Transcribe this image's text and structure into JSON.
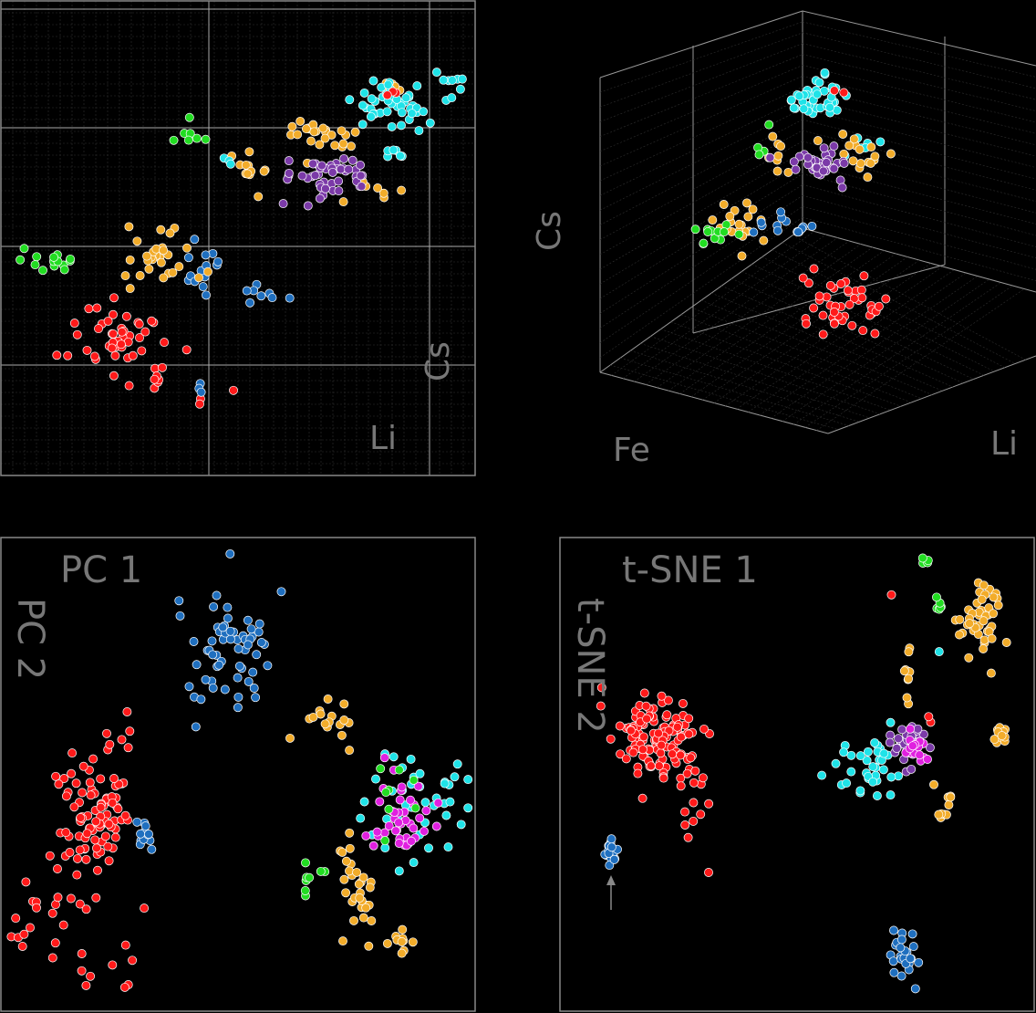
{
  "colors": {
    "red": "#ff1a1a",
    "blue": "#1f6fbf",
    "cyan": "#1fe3e8",
    "orange": "#f2ac2a",
    "green": "#22dd22",
    "purple": "#7b3aa8",
    "magenta": "#e020e0",
    "frame": "#888888",
    "grid": "#2e2e2e",
    "axis_text": "#777777"
  },
  "chart_data": [
    {
      "type": "scatter",
      "panel": "top-left",
      "xlabel": "Li",
      "ylabel": "Cs",
      "grid": true,
      "clusters": [
        {
          "color": "red",
          "x": 0.25,
          "y": 0.29,
          "n": 45,
          "sx": 0.05,
          "sy": 0.04
        },
        {
          "color": "red",
          "x": 0.33,
          "y": 0.21,
          "n": 7,
          "sx": 0.02,
          "sy": 0.02
        },
        {
          "color": "red",
          "x": 0.42,
          "y": 0.16,
          "n": 2,
          "sx": 0.005,
          "sy": 0.005
        },
        {
          "color": "red",
          "x": 0.49,
          "y": 0.18,
          "n": 1,
          "sx": 0.002,
          "sy": 0.002
        },
        {
          "color": "blue",
          "x": 0.42,
          "y": 0.43,
          "n": 14,
          "sx": 0.015,
          "sy": 0.04
        },
        {
          "color": "blue",
          "x": 0.55,
          "y": 0.38,
          "n": 8,
          "sx": 0.03,
          "sy": 0.01
        },
        {
          "color": "blue",
          "x": 0.42,
          "y": 0.19,
          "n": 3,
          "sx": 0.005,
          "sy": 0.01
        },
        {
          "color": "green",
          "x": 0.1,
          "y": 0.46,
          "n": 14,
          "sx": 0.04,
          "sy": 0.015
        },
        {
          "color": "green",
          "x": 0.4,
          "y": 0.72,
          "n": 6,
          "sx": 0.02,
          "sy": 0.01
        },
        {
          "color": "green",
          "x": 0.4,
          "y": 0.76,
          "n": 1,
          "sx": 0.002,
          "sy": 0.002
        },
        {
          "color": "orange",
          "x": 0.34,
          "y": 0.46,
          "n": 30,
          "sx": 0.035,
          "sy": 0.035
        },
        {
          "color": "orange",
          "x": 0.53,
          "y": 0.64,
          "n": 12,
          "sx": 0.02,
          "sy": 0.025
        },
        {
          "color": "orange",
          "x": 0.67,
          "y": 0.72,
          "n": 25,
          "sx": 0.04,
          "sy": 0.02
        },
        {
          "color": "orange",
          "x": 0.8,
          "y": 0.6,
          "n": 7,
          "sx": 0.04,
          "sy": 0.015
        },
        {
          "color": "orange",
          "x": 0.82,
          "y": 0.8,
          "n": 6,
          "sx": 0.02,
          "sy": 0.02
        },
        {
          "color": "purple",
          "x": 0.69,
          "y": 0.63,
          "n": 45,
          "sx": 0.05,
          "sy": 0.02
        },
        {
          "color": "cyan",
          "x": 0.83,
          "y": 0.78,
          "n": 45,
          "sx": 0.04,
          "sy": 0.025
        },
        {
          "color": "cyan",
          "x": 0.93,
          "y": 0.82,
          "n": 8,
          "sx": 0.025,
          "sy": 0.02
        },
        {
          "color": "cyan",
          "x": 0.83,
          "y": 0.68,
          "n": 6,
          "sx": 0.01,
          "sy": 0.01
        },
        {
          "color": "cyan",
          "x": 0.48,
          "y": 0.66,
          "n": 3,
          "sx": 0.008,
          "sy": 0.004
        },
        {
          "color": "red",
          "x": 0.82,
          "y": 0.8,
          "n": 3,
          "sx": 0.01,
          "sy": 0.01
        }
      ]
    },
    {
      "type": "scatter",
      "panel": "top-right",
      "projection": "3d",
      "xlabel": "Li",
      "ylabel": "Fe",
      "zlabel": "Cs",
      "grid": true,
      "clusters": [
        {
          "color": "red",
          "x": 0.55,
          "y": 0.3,
          "n": 45,
          "sx": 0.06,
          "sy": 0.04
        },
        {
          "color": "cyan",
          "x": 0.49,
          "y": 0.83,
          "n": 40,
          "sx": 0.04,
          "sy": 0.03
        },
        {
          "color": "cyan",
          "x": 0.6,
          "y": 0.72,
          "n": 6,
          "sx": 0.03,
          "sy": 0.02
        },
        {
          "color": "orange",
          "x": 0.6,
          "y": 0.7,
          "n": 16,
          "sx": 0.04,
          "sy": 0.02
        },
        {
          "color": "orange",
          "x": 0.4,
          "y": 0.71,
          "n": 10,
          "sx": 0.06,
          "sy": 0.04
        },
        {
          "color": "orange",
          "x": 0.27,
          "y": 0.52,
          "n": 20,
          "sx": 0.03,
          "sy": 0.03
        },
        {
          "color": "purple",
          "x": 0.5,
          "y": 0.67,
          "n": 40,
          "sx": 0.04,
          "sy": 0.02
        },
        {
          "color": "green",
          "x": 0.2,
          "y": 0.48,
          "n": 12,
          "sx": 0.03,
          "sy": 0.02
        },
        {
          "color": "green",
          "x": 0.36,
          "y": 0.72,
          "n": 4,
          "sx": 0.02,
          "sy": 0.02
        },
        {
          "color": "blue",
          "x": 0.4,
          "y": 0.5,
          "n": 14,
          "sx": 0.05,
          "sy": 0.02
        },
        {
          "color": "red",
          "x": 0.55,
          "y": 0.86,
          "n": 2,
          "sx": 0.02,
          "sy": 0.01
        }
      ]
    },
    {
      "type": "scatter",
      "panel": "bottom-left",
      "xlabel": "PC 1",
      "ylabel": "PC 2",
      "clusters": [
        {
          "color": "red",
          "x": 0.19,
          "y": 0.42,
          "n": 90,
          "sx": 0.035,
          "sy": 0.06
        },
        {
          "color": "red",
          "x": 0.11,
          "y": 0.22,
          "n": 20,
          "sx": 0.06,
          "sy": 0.05
        },
        {
          "color": "red",
          "x": 0.2,
          "y": 0.1,
          "n": 10,
          "sx": 0.07,
          "sy": 0.03
        },
        {
          "color": "red",
          "x": 0.24,
          "y": 0.55,
          "n": 8,
          "sx": 0.02,
          "sy": 0.06
        },
        {
          "color": "blue",
          "x": 0.48,
          "y": 0.76,
          "n": 60,
          "sx": 0.06,
          "sy": 0.07
        },
        {
          "color": "blue",
          "x": 0.3,
          "y": 0.37,
          "n": 12,
          "sx": 0.015,
          "sy": 0.015
        },
        {
          "color": "cyan",
          "x": 0.87,
          "y": 0.43,
          "n": 40,
          "sx": 0.05,
          "sy": 0.07
        },
        {
          "color": "magenta",
          "x": 0.85,
          "y": 0.41,
          "n": 40,
          "sx": 0.03,
          "sy": 0.05
        },
        {
          "color": "orange",
          "x": 0.75,
          "y": 0.24,
          "n": 30,
          "sx": 0.025,
          "sy": 0.06
        },
        {
          "color": "orange",
          "x": 0.69,
          "y": 0.61,
          "n": 16,
          "sx": 0.03,
          "sy": 0.03
        },
        {
          "color": "orange",
          "x": 0.84,
          "y": 0.15,
          "n": 10,
          "sx": 0.015,
          "sy": 0.02
        },
        {
          "color": "green",
          "x": 0.65,
          "y": 0.28,
          "n": 8,
          "sx": 0.015,
          "sy": 0.02
        },
        {
          "color": "green",
          "x": 0.83,
          "y": 0.45,
          "n": 8,
          "sx": 0.03,
          "sy": 0.05
        }
      ]
    },
    {
      "type": "scatter",
      "panel": "bottom-right",
      "xlabel": "t-SNE 1",
      "ylabel": "t-SNE 2",
      "clusters": [
        {
          "color": "red",
          "x": 0.2,
          "y": 0.58,
          "n": 120,
          "sx": 0.04,
          "sy": 0.045
        },
        {
          "color": "red",
          "x": 0.28,
          "y": 0.46,
          "n": 20,
          "sx": 0.02,
          "sy": 0.07
        },
        {
          "color": "blue",
          "x": 0.11,
          "y": 0.34,
          "n": 20,
          "sx": 0.012,
          "sy": 0.012
        },
        {
          "color": "blue",
          "x": 0.73,
          "y": 0.11,
          "n": 25,
          "sx": 0.015,
          "sy": 0.03
        },
        {
          "color": "cyan",
          "x": 0.66,
          "y": 0.5,
          "n": 35,
          "sx": 0.04,
          "sy": 0.035
        },
        {
          "color": "purple",
          "x": 0.74,
          "y": 0.56,
          "n": 30,
          "sx": 0.02,
          "sy": 0.025
        },
        {
          "color": "magenta",
          "x": 0.75,
          "y": 0.56,
          "n": 18,
          "sx": 0.012,
          "sy": 0.015
        },
        {
          "color": "orange",
          "x": 0.89,
          "y": 0.83,
          "n": 45,
          "sx": 0.025,
          "sy": 0.04
        },
        {
          "color": "orange",
          "x": 0.73,
          "y": 0.71,
          "n": 10,
          "sx": 0.008,
          "sy": 0.025
        },
        {
          "color": "orange",
          "x": 0.81,
          "y": 0.44,
          "n": 10,
          "sx": 0.01,
          "sy": 0.03
        },
        {
          "color": "orange",
          "x": 0.93,
          "y": 0.58,
          "n": 12,
          "sx": 0.006,
          "sy": 0.01
        },
        {
          "color": "green",
          "x": 0.77,
          "y": 0.95,
          "n": 4,
          "sx": 0.005,
          "sy": 0.004
        },
        {
          "color": "green",
          "x": 0.8,
          "y": 0.86,
          "n": 6,
          "sx": 0.01,
          "sy": 0.01
        },
        {
          "color": "red",
          "x": 0.7,
          "y": 0.88,
          "n": 1,
          "sx": 0.001,
          "sy": 0.001
        },
        {
          "color": "cyan",
          "x": 0.8,
          "y": 0.76,
          "n": 1,
          "sx": 0.001,
          "sy": 0.001
        },
        {
          "color": "red",
          "x": 0.78,
          "y": 0.61,
          "n": 2,
          "sx": 0.005,
          "sy": 0.005
        }
      ]
    }
  ]
}
